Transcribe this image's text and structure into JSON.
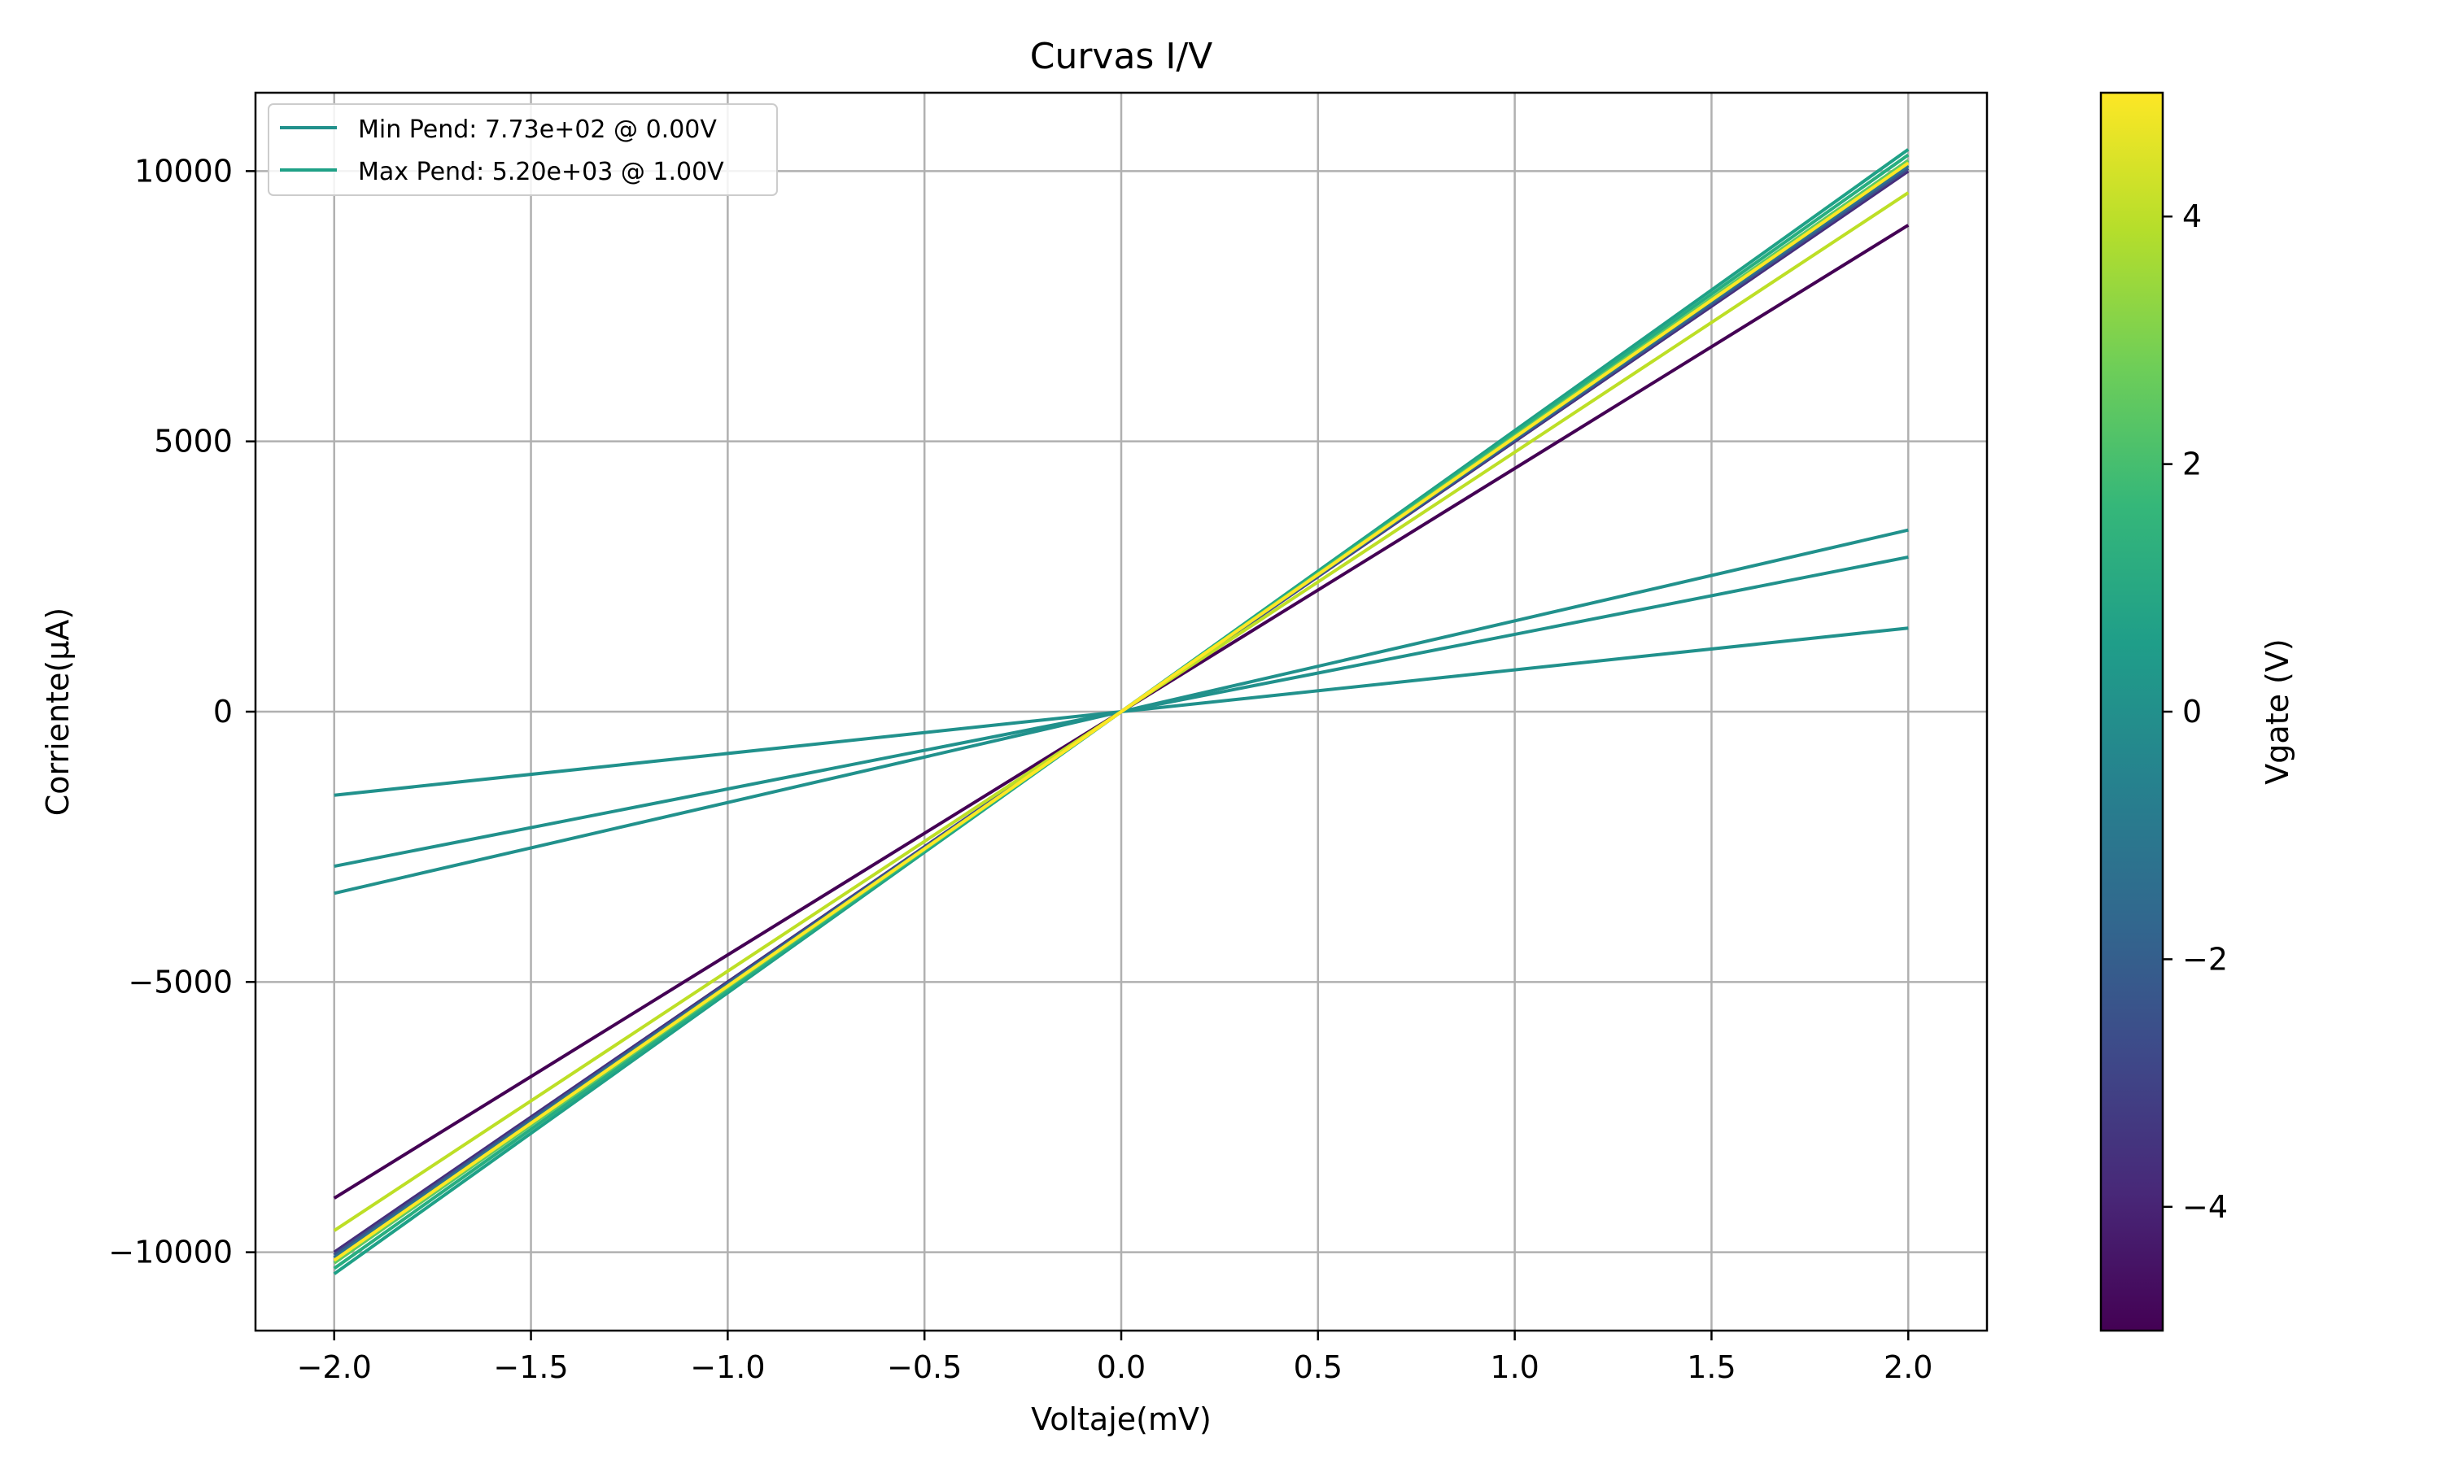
{
  "chart_data": {
    "type": "line",
    "title": "Curvas I/V",
    "xlabel": "Voltaje(mV)",
    "ylabel": "Corriente(μA)",
    "xlim": [
      -2.2,
      2.2
    ],
    "ylim": [
      -11450,
      11450
    ],
    "xticks": [
      -2.0,
      -1.5,
      -1.0,
      -0.5,
      0.0,
      0.5,
      1.0,
      1.5,
      2.0
    ],
    "xtick_labels": [
      "−2.0",
      "−1.5",
      "−1.0",
      "−0.5",
      "0.0",
      "0.5",
      "1.0",
      "1.5",
      "2.0"
    ],
    "yticks": [
      -10000,
      -5000,
      0,
      5000,
      10000
    ],
    "ytick_labels": [
      "−10000",
      "−5000",
      "0",
      "5000",
      "10000"
    ],
    "grid": true,
    "legend_position": "top-left",
    "legend": [
      {
        "label": "Min Pend: 7.73e+02 @ 0.00V",
        "color": "#21918c"
      },
      {
        "label": "Max Pend: 5.20e+03 @ 1.00V",
        "color": "#1fa187"
      }
    ],
    "series": [
      {
        "vgate": -5,
        "color": "#440154",
        "x": [
          -2.0,
          2.0
        ],
        "y": [
          -9000,
          9000
        ]
      },
      {
        "vgate": -4,
        "color": "#472d7b",
        "x": [
          -2.0,
          2.0
        ],
        "y": [
          -10000,
          10000
        ]
      },
      {
        "vgate": -3,
        "color": "#3b528b",
        "x": [
          -2.0,
          2.0
        ],
        "y": [
          -10050,
          10050
        ]
      },
      {
        "vgate": -2,
        "color": "#2c728e",
        "x": [
          -2.0,
          2.0
        ],
        "y": [
          -10100,
          10100
        ]
      },
      {
        "vgate": -1,
        "color": "#21918c",
        "x": [
          -2.0,
          2.0
        ],
        "y": [
          -3360,
          3360
        ]
      },
      {
        "vgate": 0,
        "color": "#21918c",
        "x": [
          -2.0,
          2.0
        ],
        "y": [
          -1546,
          1546
        ]
      },
      {
        "vgate": 0,
        "color": "#21918c",
        "x": [
          -2.0,
          2.0
        ],
        "y": [
          -2860,
          2860
        ]
      },
      {
        "vgate": 1,
        "color": "#1fa187",
        "x": [
          -2.0,
          2.0
        ],
        "y": [
          -10400,
          10400
        ]
      },
      {
        "vgate": 2,
        "color": "#28ae80",
        "x": [
          -2.0,
          2.0
        ],
        "y": [
          -10300,
          10300
        ]
      },
      {
        "vgate": 3,
        "color": "#5ec962",
        "x": [
          -2.0,
          2.0
        ],
        "y": [
          -10200,
          10200
        ]
      },
      {
        "vgate": 4,
        "color": "#bddf26",
        "x": [
          -2.0,
          2.0
        ],
        "y": [
          -9600,
          9600
        ]
      },
      {
        "vgate": 5,
        "color": "#fde725",
        "x": [
          -2.0,
          2.0
        ],
        "y": [
          -10150,
          10150
        ]
      }
    ],
    "colorbar": {
      "label": "Vgate (V)",
      "range": [
        -5,
        5
      ],
      "ticks": [
        -4,
        -2,
        0,
        2,
        4
      ],
      "tick_labels": [
        "−4",
        "−2",
        "0",
        "2",
        "4"
      ],
      "colormap": [
        "#440154",
        "#482878",
        "#3e4989",
        "#31688e",
        "#26828e",
        "#1f9e89",
        "#35b779",
        "#6ece58",
        "#b5de2b",
        "#fde725"
      ]
    }
  }
}
